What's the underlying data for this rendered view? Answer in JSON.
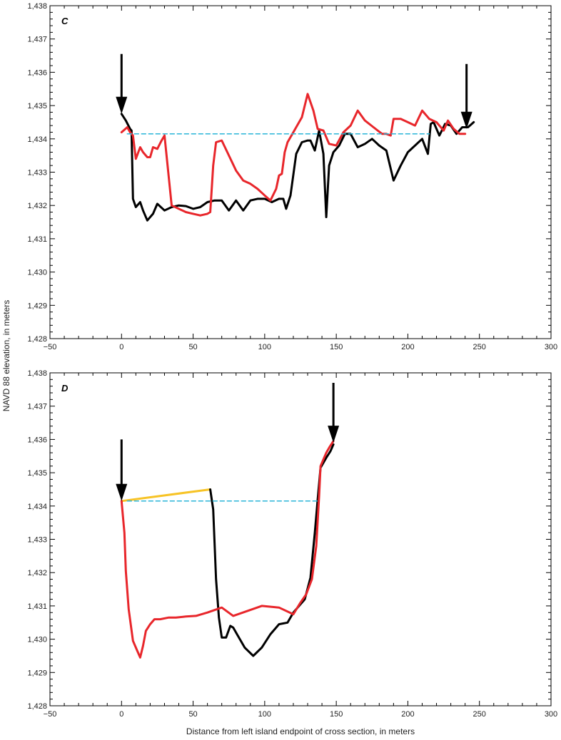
{
  "chart_data": {
    "type": "line",
    "ylabel": "NAVD 88 elevation, in meters",
    "xlabel": "Distance from left island endpoint of cross section, in meters",
    "colors": {
      "black": "#000000",
      "red": "#e8262b",
      "cyan": "#29b5d8",
      "yellow": "#f7c325"
    },
    "panels": [
      {
        "label": "C",
        "xlim": [
          -50,
          300
        ],
        "ylim": [
          1428,
          1438
        ],
        "x_ticks": [
          -50,
          0,
          50,
          100,
          150,
          200,
          250,
          300
        ],
        "x_tick_labels": [
          "−50",
          "0",
          "50",
          "100",
          "150",
          "200",
          "250",
          "300"
        ],
        "y_ticks": [
          1428,
          1429,
          1430,
          1431,
          1432,
          1433,
          1434,
          1435,
          1436,
          1437,
          1438
        ],
        "y_tick_labels": [
          "1,428",
          "1,429",
          "1,430",
          "1,431",
          "1,432",
          "1,433",
          "1,434",
          "1,435",
          "1,436",
          "1,437",
          "1,438"
        ],
        "series": [
          {
            "color": "black",
            "dashed": false,
            "x": [
              0,
              3,
              6,
              7,
              8,
              10,
              13,
              15,
              18,
              22,
              25,
              30,
              35,
              40,
              45,
              50,
              55,
              60,
              65,
              70,
              75,
              80,
              85,
              90,
              95,
              100,
              105,
              110,
              113,
              115,
              118,
              122,
              126,
              130,
              132,
              135,
              138,
              141,
              143,
              145,
              148,
              152,
              156,
              160,
              165,
              170,
              175,
              180,
              185,
              190,
              195,
              200,
              205,
              210,
              214,
              216,
              218,
              222,
              226,
              230,
              234,
              238,
              242,
              246
            ],
            "y": [
              1434.75,
              1434.55,
              1434.3,
              1434.25,
              1432.2,
              1431.95,
              1432.1,
              1431.85,
              1431.55,
              1431.75,
              1432.05,
              1431.85,
              1431.95,
              1432.0,
              1431.98,
              1431.9,
              1431.95,
              1432.1,
              1432.15,
              1432.15,
              1431.85,
              1432.15,
              1431.85,
              1432.15,
              1432.2,
              1432.2,
              1432.1,
              1432.2,
              1432.2,
              1431.9,
              1432.3,
              1433.55,
              1433.9,
              1433.95,
              1433.95,
              1433.65,
              1434.25,
              1433.55,
              1431.65,
              1433.2,
              1433.6,
              1433.8,
              1434.15,
              1434.15,
              1433.75,
              1433.85,
              1434.0,
              1433.8,
              1433.65,
              1432.75,
              1433.2,
              1433.6,
              1433.8,
              1434.0,
              1433.55,
              1434.45,
              1434.5,
              1434.1,
              1434.45,
              1434.4,
              1434.15,
              1434.35,
              1434.35,
              1434.5
            ]
          },
          {
            "color": "red",
            "dashed": false,
            "x": [
              0,
              4,
              6,
              8,
              10,
              13,
              15,
              18,
              20,
              22,
              25,
              28,
              30,
              35,
              40,
              45,
              50,
              55,
              60,
              62,
              64,
              66,
              70,
              75,
              80,
              85,
              90,
              95,
              100,
              104,
              108,
              110,
              112,
              114,
              116,
              120,
              126,
              130,
              134,
              137,
              141,
              145,
              150,
              155,
              160,
              165,
              170,
              176,
              182,
              185,
              188,
              190,
              195,
              200,
              205,
              210,
              215,
              220,
              225,
              228,
              232,
              236,
              240
            ],
            "y": [
              1434.2,
              1434.35,
              1434.2,
              1434.1,
              1433.4,
              1433.75,
              1433.6,
              1433.45,
              1433.45,
              1433.75,
              1433.7,
              1433.95,
              1434.1,
              1432.0,
              1431.9,
              1431.8,
              1431.75,
              1431.7,
              1431.75,
              1431.8,
              1433.2,
              1433.9,
              1433.95,
              1433.5,
              1433.05,
              1432.75,
              1432.65,
              1432.5,
              1432.3,
              1432.15,
              1432.5,
              1432.9,
              1432.95,
              1433.6,
              1433.9,
              1434.2,
              1434.65,
              1435.35,
              1434.85,
              1434.3,
              1434.25,
              1433.85,
              1433.8,
              1434.2,
              1434.4,
              1434.85,
              1434.55,
              1434.35,
              1434.15,
              1434.15,
              1434.1,
              1434.6,
              1434.6,
              1434.5,
              1434.4,
              1434.85,
              1434.6,
              1434.5,
              1434.25,
              1434.55,
              1434.3,
              1434.15,
              1434.15
            ]
          },
          {
            "color": "cyan",
            "dashed": true,
            "x": [
              4,
              215
            ],
            "y": [
              1434.15,
              1434.15
            ]
          }
        ],
        "arrows": [
          {
            "x": 0,
            "y_top": 1436.55,
            "y_tip": 1434.75
          },
          {
            "x": 241,
            "y_top": 1436.25,
            "y_tip": 1434.3
          }
        ]
      },
      {
        "label": "D",
        "xlim": [
          -50,
          300
        ],
        "ylim": [
          1428,
          1438
        ],
        "x_ticks": [
          -50,
          0,
          50,
          100,
          150,
          200,
          250,
          300
        ],
        "x_tick_labels": [
          "−50",
          "0",
          "50",
          "100",
          "150",
          "200",
          "250",
          "300"
        ],
        "y_ticks": [
          1428,
          1429,
          1430,
          1431,
          1432,
          1433,
          1434,
          1435,
          1436,
          1437,
          1438
        ],
        "y_tick_labels": [
          "1,428",
          "1,429",
          "1,430",
          "1,431",
          "1,432",
          "1,433",
          "1,434",
          "1,435",
          "1,436",
          "1,437",
          "1,438"
        ],
        "series": [
          {
            "color": "yellow",
            "dashed": false,
            "x": [
              0,
              62
            ],
            "y": [
              1434.15,
              1434.5
            ]
          },
          {
            "color": "black",
            "dashed": false,
            "x": [
              62,
              64,
              66,
              68,
              70,
              73,
              76,
              78,
              80,
              86,
              92,
              98,
              104,
              110,
              116,
              120,
              124,
              128,
              132,
              135,
              137,
              139,
              141,
              143,
              146,
              148
            ],
            "y": [
              1434.5,
              1433.9,
              1431.8,
              1430.65,
              1430.05,
              1430.05,
              1430.4,
              1430.35,
              1430.2,
              1429.75,
              1429.5,
              1429.75,
              1430.15,
              1430.45,
              1430.5,
              1430.8,
              1431.0,
              1431.2,
              1431.85,
              1433.2,
              1434.2,
              1435.15,
              1435.3,
              1435.45,
              1435.65,
              1435.85
            ]
          },
          {
            "color": "red",
            "dashed": false,
            "x": [
              0,
              2,
              3,
              5,
              8,
              11,
              13,
              15,
              17,
              20,
              23,
              27,
              33,
              38,
              45,
              52,
              60,
              70,
              78,
              88,
              98,
              110,
              120,
              125,
              129,
              133,
              136,
              138,
              139,
              141,
              143,
              145,
              148
            ],
            "y": [
              1434.15,
              1433.2,
              1432.05,
              1430.9,
              1429.95,
              1429.65,
              1429.45,
              1429.8,
              1430.25,
              1430.45,
              1430.6,
              1430.6,
              1430.65,
              1430.65,
              1430.68,
              1430.7,
              1430.8,
              1430.95,
              1430.7,
              1430.85,
              1431.0,
              1430.95,
              1430.75,
              1431.1,
              1431.35,
              1431.8,
              1432.8,
              1434.3,
              1435.2,
              1435.4,
              1435.6,
              1435.75,
              1435.95
            ]
          },
          {
            "color": "cyan",
            "dashed": true,
            "x": [
              4,
              138
            ],
            "y": [
              1434.15,
              1434.15
            ]
          }
        ],
        "arrows": [
          {
            "x": 0,
            "y_top": 1436.0,
            "y_tip": 1434.15
          },
          {
            "x": 148,
            "y_top": 1437.7,
            "y_tip": 1435.9
          }
        ]
      }
    ]
  }
}
